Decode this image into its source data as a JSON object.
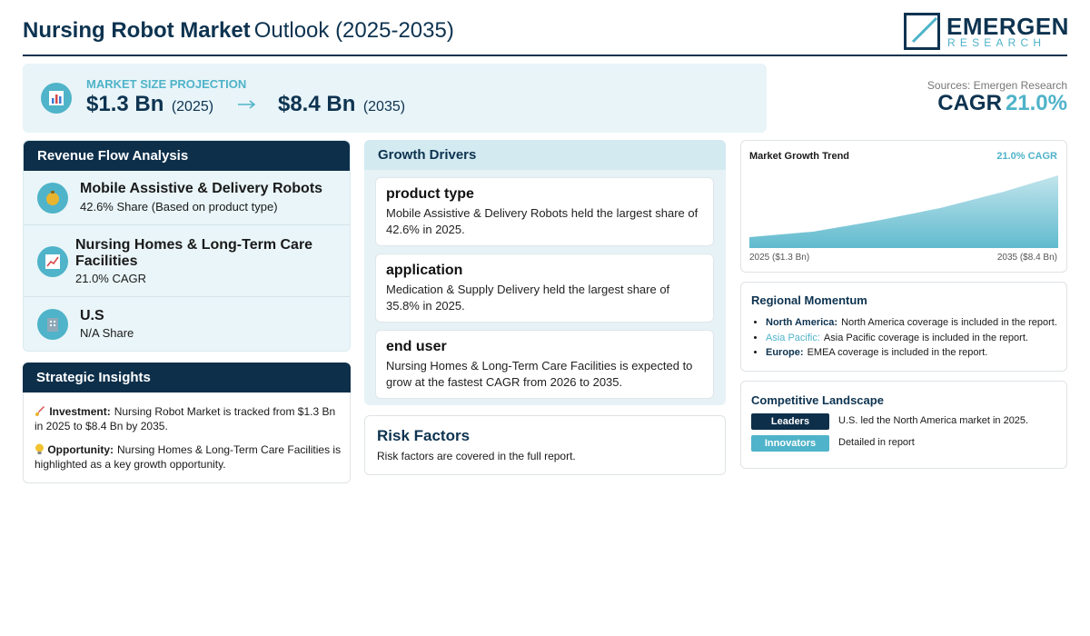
{
  "header": {
    "title_bold": "Nursing Robot Market",
    "title_rest": "Outlook (2025-2035)",
    "logo_top": "EMERGEN",
    "logo_bottom": "RESEARCH"
  },
  "banner": {
    "label": "MARKET SIZE PROJECTION",
    "start_value": "$1.3 Bn",
    "start_year": "(2025)",
    "end_value": "$8.4 Bn",
    "end_year": "(2035)",
    "source": "Sources: Emergen Research",
    "cagr_label": "CAGR",
    "cagr_value": "21.0%"
  },
  "revenue_flow": {
    "title": "Revenue Flow Analysis",
    "items": [
      {
        "title": "Mobile Assistive & Delivery Robots",
        "subtitle": "42.6% Share (Based on product type)"
      },
      {
        "title": "Nursing Homes & Long-Term Care Facilities",
        "subtitle": "21.0% CAGR"
      },
      {
        "title": "U.S",
        "subtitle": "N/A Share"
      }
    ]
  },
  "strategic_insights": {
    "title": "Strategic Insights",
    "items": [
      {
        "label": "Investment:",
        "text": "Nursing Robot Market is tracked from $1.3 Bn in 2025 to $8.4 Bn by 2035."
      },
      {
        "label": "Opportunity:",
        "text": "Nursing Homes & Long-Term Care Facilities is highlighted as a key growth opportunity."
      }
    ]
  },
  "growth_drivers": {
    "title": "Growth Drivers",
    "cards": [
      {
        "title": "product type",
        "text": "Mobile Assistive & Delivery Robots held the largest share of 42.6% in 2025."
      },
      {
        "title": "application",
        "text": "Medication & Supply Delivery held the largest share of 35.8% in 2025."
      },
      {
        "title": "end user",
        "text": "Nursing Homes & Long-Term Care Facilities is expected to grow at the fastest CAGR from 2026 to 2035."
      }
    ]
  },
  "risk_factors": {
    "title": "Risk Factors",
    "text": "Risk factors are covered in the full report."
  },
  "growth_trend": {
    "title": "Market Growth Trend",
    "cagr": "21.0% CAGR",
    "start_label": "2025 ($1.3 Bn)",
    "end_label": "2035 ($8.4 Bn)"
  },
  "regional_momentum": {
    "title": "Regional Momentum",
    "items": [
      {
        "region": "North America:",
        "text": "North America coverage is included in the report."
      },
      {
        "region": "Asia Pacific:",
        "text": "Asia Pacific coverage is included in the report."
      },
      {
        "region": "Europe:",
        "text": "EMEA coverage is included in the report."
      }
    ]
  },
  "competitive_landscape": {
    "title": "Competitive Landscape",
    "rows": [
      {
        "badge": "Leaders",
        "text": "U.S. led the North America market in 2025."
      },
      {
        "badge": "Innovators",
        "text": "Detailed in report"
      }
    ]
  }
}
